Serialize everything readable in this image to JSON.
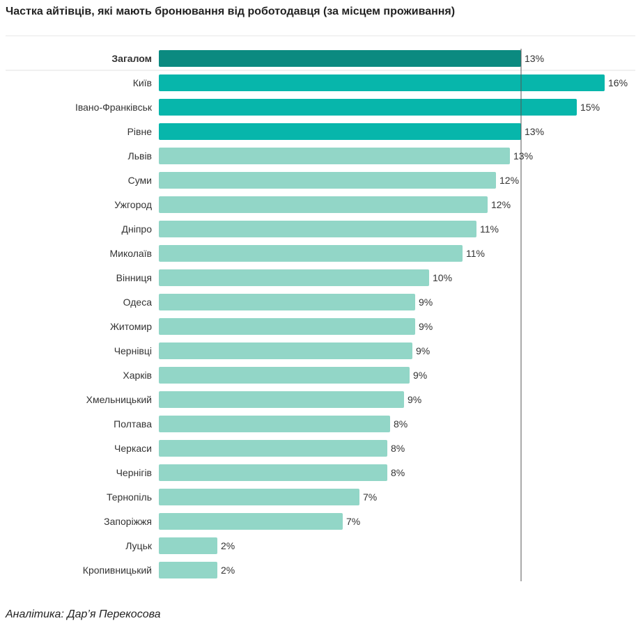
{
  "title": "Частка айтівців, які мають бронювання від роботодавця (за місцем проживання)",
  "credit": "Аналітика: Дар’я Перекосова",
  "colors": {
    "overall": "#0b8a80",
    "top": "#07b6ab",
    "rest": "#92d6c7",
    "text": "#333333",
    "reference_line": "#555555"
  },
  "chart_data": {
    "type": "bar",
    "orientation": "horizontal",
    "value_suffix": "%",
    "reference_value": 13,
    "xlim": [
      0,
      16
    ],
    "categories": [
      "Загалом",
      "Київ",
      "Івано-Франківськ",
      "Рівне",
      "Львів",
      "Суми",
      "Ужгород",
      "Дніпро",
      "Миколаїв",
      "Вінниця",
      "Одеса",
      "Житомир",
      "Чернівці",
      "Харків",
      "Хмельницький",
      "Полтава",
      "Черкаси",
      "Чернігів",
      "Тернопіль",
      "Запоріжжя",
      "Луцьк",
      "Кропивницький"
    ],
    "values": [
      13,
      16,
      15,
      13,
      12.6,
      12.1,
      11.8,
      11.4,
      10.9,
      9.7,
      9.2,
      9.2,
      9.1,
      9.0,
      8.8,
      8.3,
      8.2,
      8.2,
      7.2,
      6.6,
      2.1,
      2.1
    ],
    "value_labels": [
      "13%",
      "16%",
      "15%",
      "13%",
      "13%",
      "12%",
      "12%",
      "11%",
      "11%",
      "10%",
      "9%",
      "9%",
      "9%",
      "9%",
      "9%",
      "8%",
      "8%",
      "8%",
      "7%",
      "7%",
      "2%",
      "2%"
    ],
    "highlight": [
      "overall",
      "top",
      "top",
      "top",
      "rest",
      "rest",
      "rest",
      "rest",
      "rest",
      "rest",
      "rest",
      "rest",
      "rest",
      "rest",
      "rest",
      "rest",
      "rest",
      "rest",
      "rest",
      "rest",
      "rest",
      "rest"
    ]
  }
}
